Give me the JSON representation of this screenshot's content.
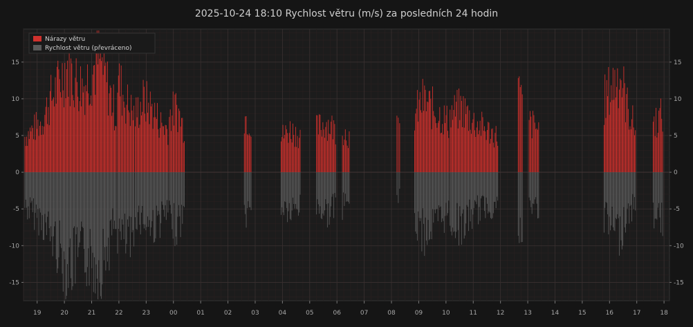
{
  "chart_data": {
    "type": "bar",
    "title": "2025-10-24  18:10  Rychlost větru (m/s) za posledních 24 hodin",
    "xlabel": "",
    "ylabel": "",
    "ylim": [
      -17.5,
      19.5
    ],
    "y_ticks": [
      -15,
      -10,
      -5,
      0,
      5,
      10,
      15
    ],
    "x_range_hours": [
      18.5,
      42.2
    ],
    "x_ticks": [
      {
        "label": "19",
        "hour": 19
      },
      {
        "label": "20",
        "hour": 20
      },
      {
        "label": "21",
        "hour": 21
      },
      {
        "label": "22",
        "hour": 22
      },
      {
        "label": "23",
        "hour": 23
      },
      {
        "label": "00",
        "hour": 24
      },
      {
        "label": "01",
        "hour": 25
      },
      {
        "label": "02",
        "hour": 26
      },
      {
        "label": "03",
        "hour": 27
      },
      {
        "label": "04",
        "hour": 28
      },
      {
        "label": "05",
        "hour": 29
      },
      {
        "label": "06",
        "hour": 30
      },
      {
        "label": "07",
        "hour": 31
      },
      {
        "label": "08",
        "hour": 32
      },
      {
        "label": "09",
        "hour": 33
      },
      {
        "label": "10",
        "hour": 34
      },
      {
        "label": "11",
        "hour": 35
      },
      {
        "label": "12",
        "hour": 36
      },
      {
        "label": "13",
        "hour": 37
      },
      {
        "label": "14",
        "hour": 38
      },
      {
        "label": "15",
        "hour": 39
      },
      {
        "label": "16",
        "hour": 40
      },
      {
        "label": "17",
        "hour": 41
      },
      {
        "label": "18",
        "hour": 42
      }
    ],
    "grid": true,
    "legend_position": "top-left",
    "series": [
      {
        "name": "Nárazy větru",
        "color": "#d0312d",
        "direction": "up"
      },
      {
        "name": "Rychlost větru (převráceno)",
        "color": "#5a5a5a",
        "direction": "down"
      }
    ],
    "segments": [
      {
        "start": 18.55,
        "end": 21.9,
        "gust": [
          5,
          6,
          7,
          10,
          12,
          15,
          13,
          12,
          14,
          16,
          12,
          8
        ],
        "speed": [
          5,
          6,
          7,
          9,
          11,
          14,
          13,
          12,
          13,
          14,
          11,
          7
        ]
      },
      {
        "start": 21.95,
        "end": 22.55,
        "gust": [
          13,
          10,
          8
        ],
        "speed": [
          9,
          10,
          11
        ]
      },
      {
        "start": 22.6,
        "end": 23.8,
        "gust": [
          8,
          10,
          9,
          7,
          6
        ],
        "speed": [
          6,
          7,
          8,
          7,
          6
        ]
      },
      {
        "start": 23.85,
        "end": 24.4,
        "gust": [
          8,
          9,
          6
        ],
        "speed": [
          7,
          8,
          6
        ]
      },
      {
        "start": 26.6,
        "end": 26.85,
        "gust": [
          8,
          7
        ],
        "speed": [
          6,
          6
        ]
      },
      {
        "start": 27.95,
        "end": 28.65,
        "gust": [
          5,
          6,
          5
        ],
        "speed": [
          5,
          6,
          5
        ]
      },
      {
        "start": 29.25,
        "end": 29.95,
        "gust": [
          6,
          7,
          6
        ],
        "speed": [
          5,
          6,
          5
        ]
      },
      {
        "start": 30.2,
        "end": 30.45,
        "gust": [
          6,
          5
        ],
        "speed": [
          5,
          4
        ]
      },
      {
        "start": 32.2,
        "end": 32.3,
        "gust": [
          6
        ],
        "speed": [
          4
        ]
      },
      {
        "start": 32.85,
        "end": 34.1,
        "gust": [
          8,
          10,
          9,
          8,
          7
        ],
        "speed": [
          7,
          9,
          8,
          7,
          6
        ]
      },
      {
        "start": 34.15,
        "end": 35.9,
        "gust": [
          8,
          9,
          7,
          6,
          5
        ],
        "speed": [
          7,
          8,
          6,
          5,
          5
        ]
      },
      {
        "start": 36.65,
        "end": 36.8,
        "gust": [
          12,
          9
        ],
        "speed": [
          8,
          11
        ]
      },
      {
        "start": 37.05,
        "end": 37.4,
        "gust": [
          7,
          6
        ],
        "speed": [
          5,
          5
        ]
      },
      {
        "start": 39.8,
        "end": 40.95,
        "gust": [
          10,
          12,
          14,
          9,
          6
        ],
        "speed": [
          7,
          8,
          9,
          6,
          5
        ]
      },
      {
        "start": 41.6,
        "end": 41.95,
        "gust": [
          7,
          8
        ],
        "speed": [
          6,
          7
        ]
      }
    ]
  }
}
